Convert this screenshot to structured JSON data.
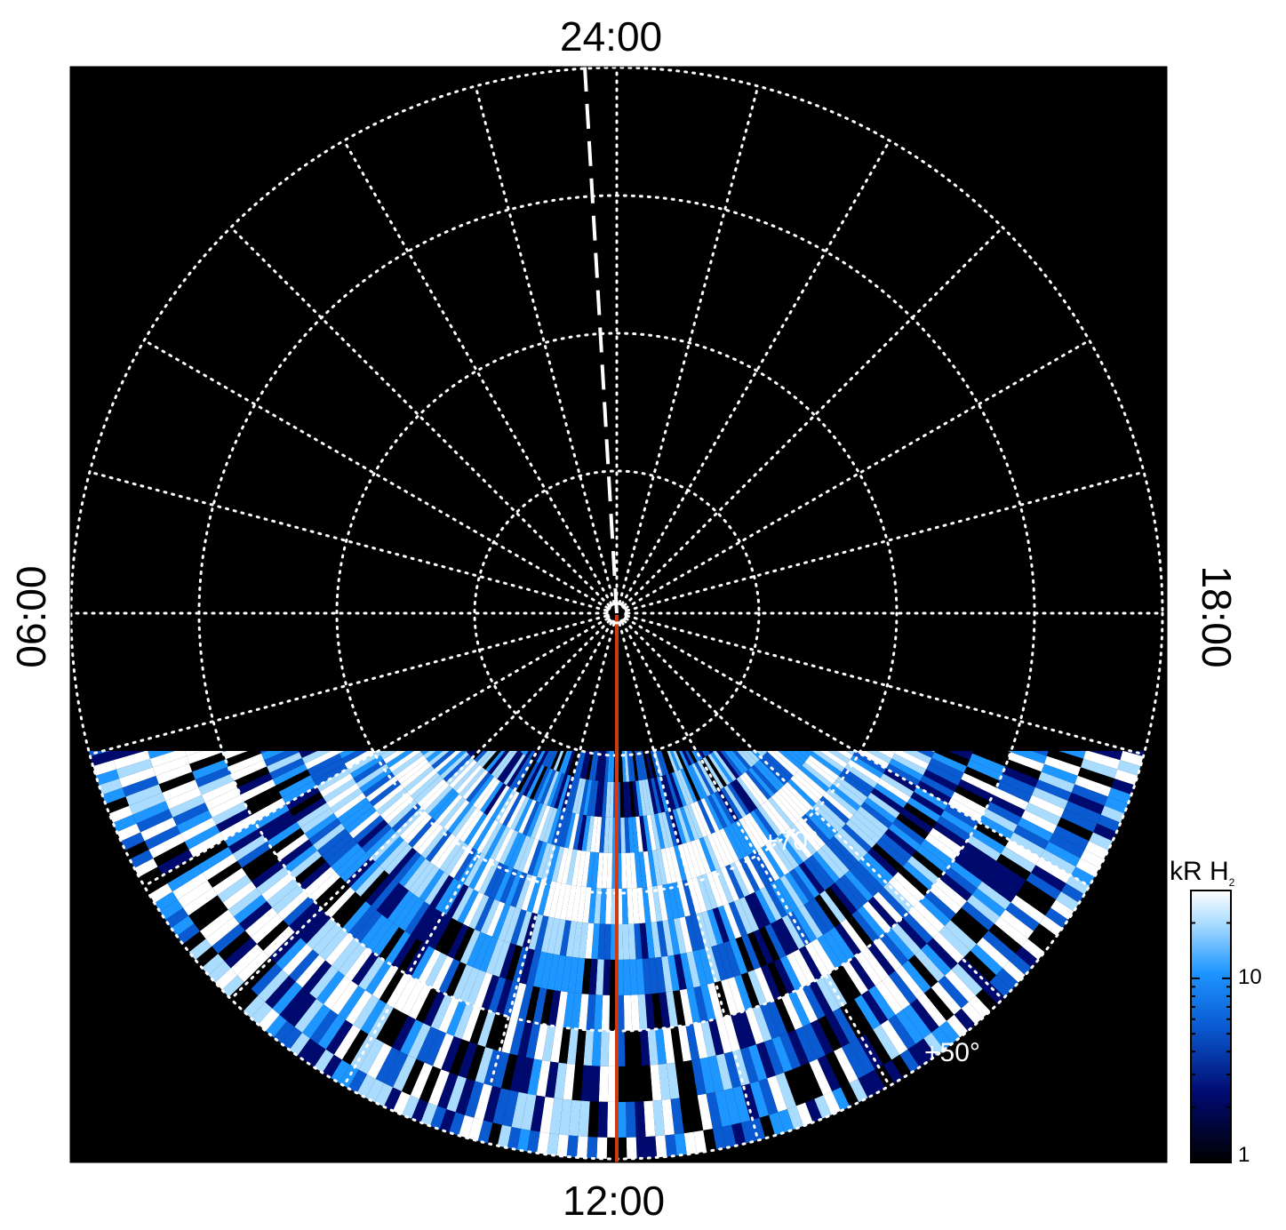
{
  "chart_data": {
    "type": "heatmap",
    "projection": "polar",
    "local_time_labels": {
      "top": "24:00",
      "bottom": "12:00",
      "left": "06:00",
      "right": "18:00"
    },
    "latitude_labels": [
      "+70°",
      "+50°"
    ],
    "colorbar": {
      "label_main": "kR H",
      "label_sub": "2",
      "ticks": [
        "10",
        "1"
      ],
      "range": [
        1,
        30
      ],
      "scale": "log",
      "colors": [
        "#000000",
        "#000a6e",
        "#0a5ad2",
        "#1e96ff",
        "#aadcff",
        "#ffffff"
      ]
    },
    "coverage": "dayside emission below the 06:00–18:00 line; night side empty",
    "grid": true,
    "colors": {
      "background": "#000000",
      "grid": "#ffffff",
      "meridian": "#d03a10"
    }
  }
}
